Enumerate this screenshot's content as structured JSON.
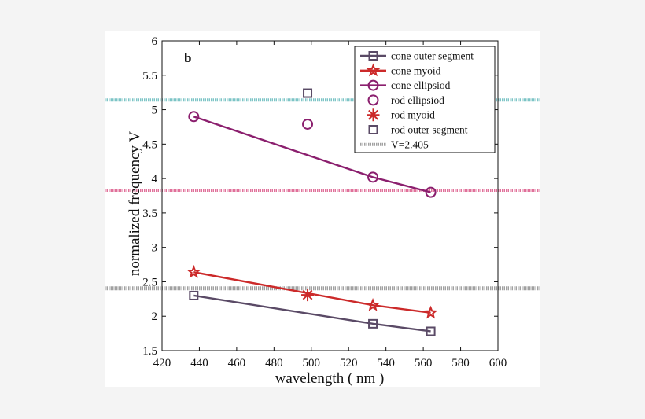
{
  "chart_data": {
    "type": "line",
    "panel_label": "b",
    "xlabel": "wavelength ( nm )",
    "ylabel": "normalized frequency V",
    "xlim": [
      420,
      600
    ],
    "ylim": [
      1.5,
      6
    ],
    "xticks": [
      420,
      440,
      460,
      480,
      500,
      520,
      540,
      560,
      580,
      600
    ],
    "yticks": [
      1.5,
      2,
      2.5,
      3,
      3.5,
      4,
      4.5,
      5,
      5.5,
      6
    ],
    "legend_position": "top-right",
    "series": [
      {
        "name": "cone outer segment",
        "color": "#5a4a66",
        "marker": "square",
        "line": true,
        "x": [
          437,
          533,
          564
        ],
        "y": [
          2.3,
          1.89,
          1.78
        ]
      },
      {
        "name": "cone myoid",
        "color": "#cc2a2a",
        "marker": "star",
        "line": true,
        "x": [
          437,
          533,
          564
        ],
        "y": [
          2.64,
          2.16,
          2.05
        ]
      },
      {
        "name": "cone ellipsiod",
        "color": "#8b1f6e",
        "marker": "circle",
        "line": true,
        "x": [
          437,
          533,
          564
        ],
        "y": [
          4.9,
          4.02,
          3.8
        ]
      },
      {
        "name": "rod ellipsiod",
        "color": "#8b1f6e",
        "marker": "circle",
        "line": false,
        "x": [
          498
        ],
        "y": [
          4.79
        ]
      },
      {
        "name": "rod myoid",
        "color": "#cc2a2a",
        "marker": "asterisk",
        "line": false,
        "x": [
          498
        ],
        "y": [
          2.31
        ]
      },
      {
        "name": "rod outer segment",
        "color": "#5a4a66",
        "marker": "square",
        "line": false,
        "x": [
          498
        ],
        "y": [
          5.24
        ]
      }
    ],
    "reference_lines": [
      {
        "name": "V=2.405",
        "y": 2.405,
        "color": "#a0a0a0",
        "in_legend": true
      },
      {
        "name": "cyan cutoff",
        "y": 5.14,
        "color": "#7cc4c6",
        "in_legend": false
      },
      {
        "name": "pink cutoff",
        "y": 3.83,
        "color": "#e0709a",
        "in_legend": false
      }
    ]
  }
}
